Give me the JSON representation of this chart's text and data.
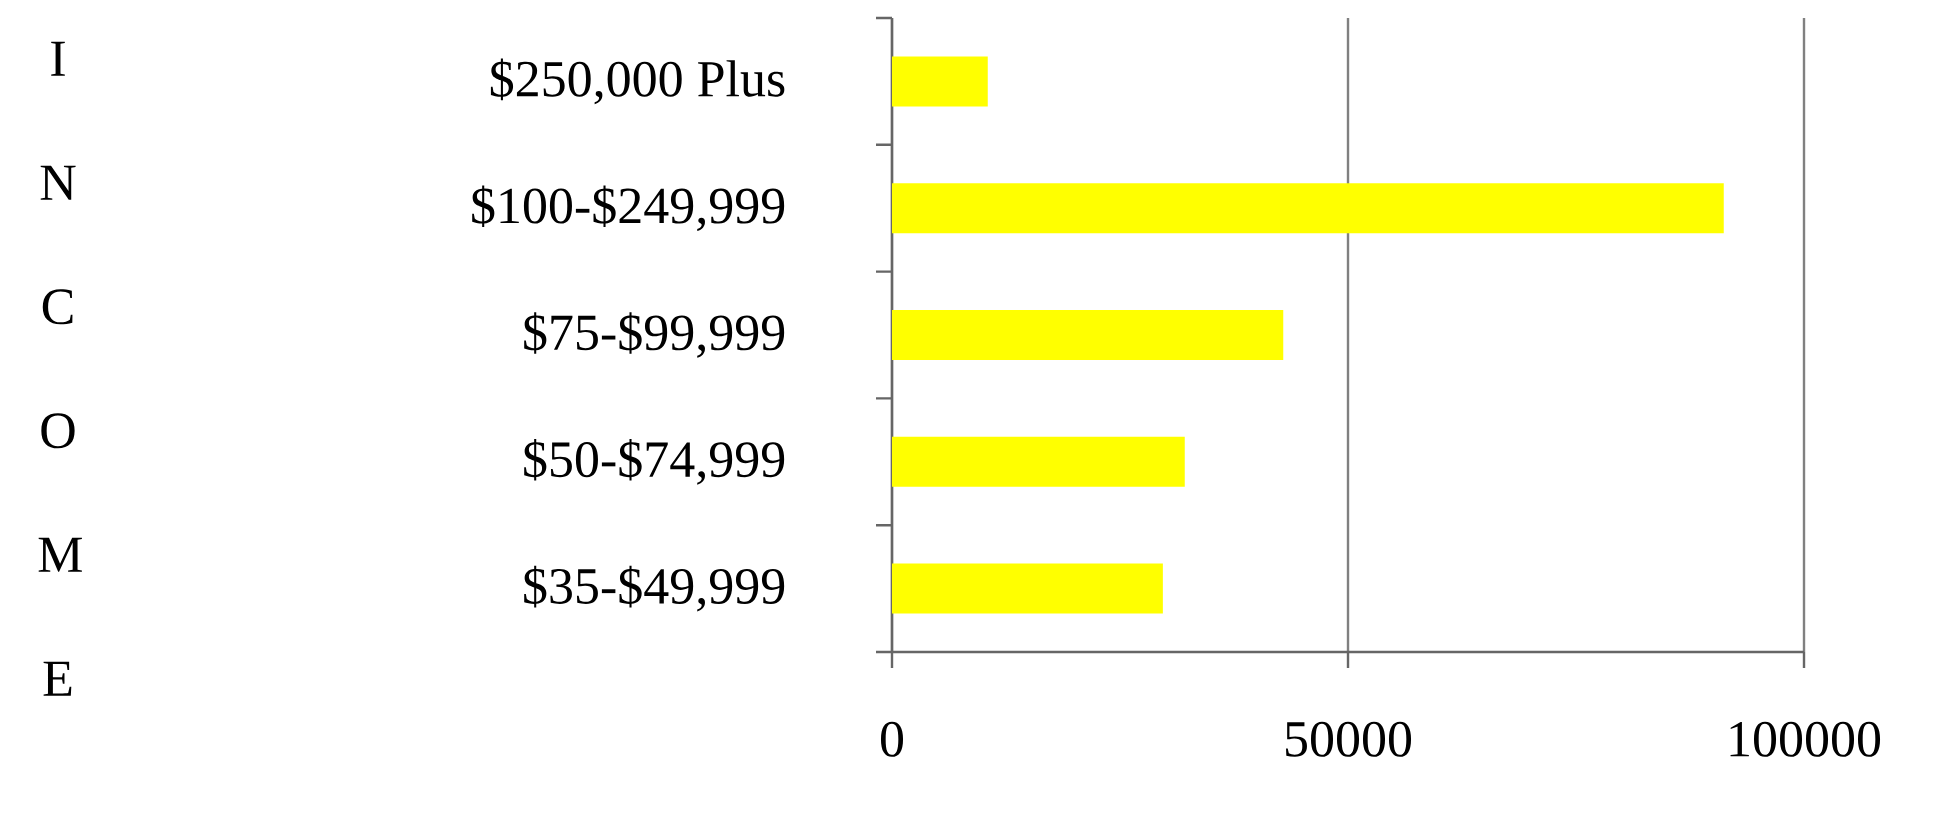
{
  "chart_data": {
    "type": "bar",
    "orientation": "horizontal",
    "ylabel": "INCOME",
    "categories": [
      "$250,000 Plus",
      "$100-$249,999",
      "$75-$99,999",
      "$50-$74,999",
      "$35-$49,999"
    ],
    "values": [
      10500,
      91200,
      42900,
      32100,
      29700
    ],
    "color": "#ffff00",
    "xlim": [
      0,
      100000
    ],
    "xticks": [
      0,
      50000,
      100000
    ],
    "grid": "x"
  }
}
